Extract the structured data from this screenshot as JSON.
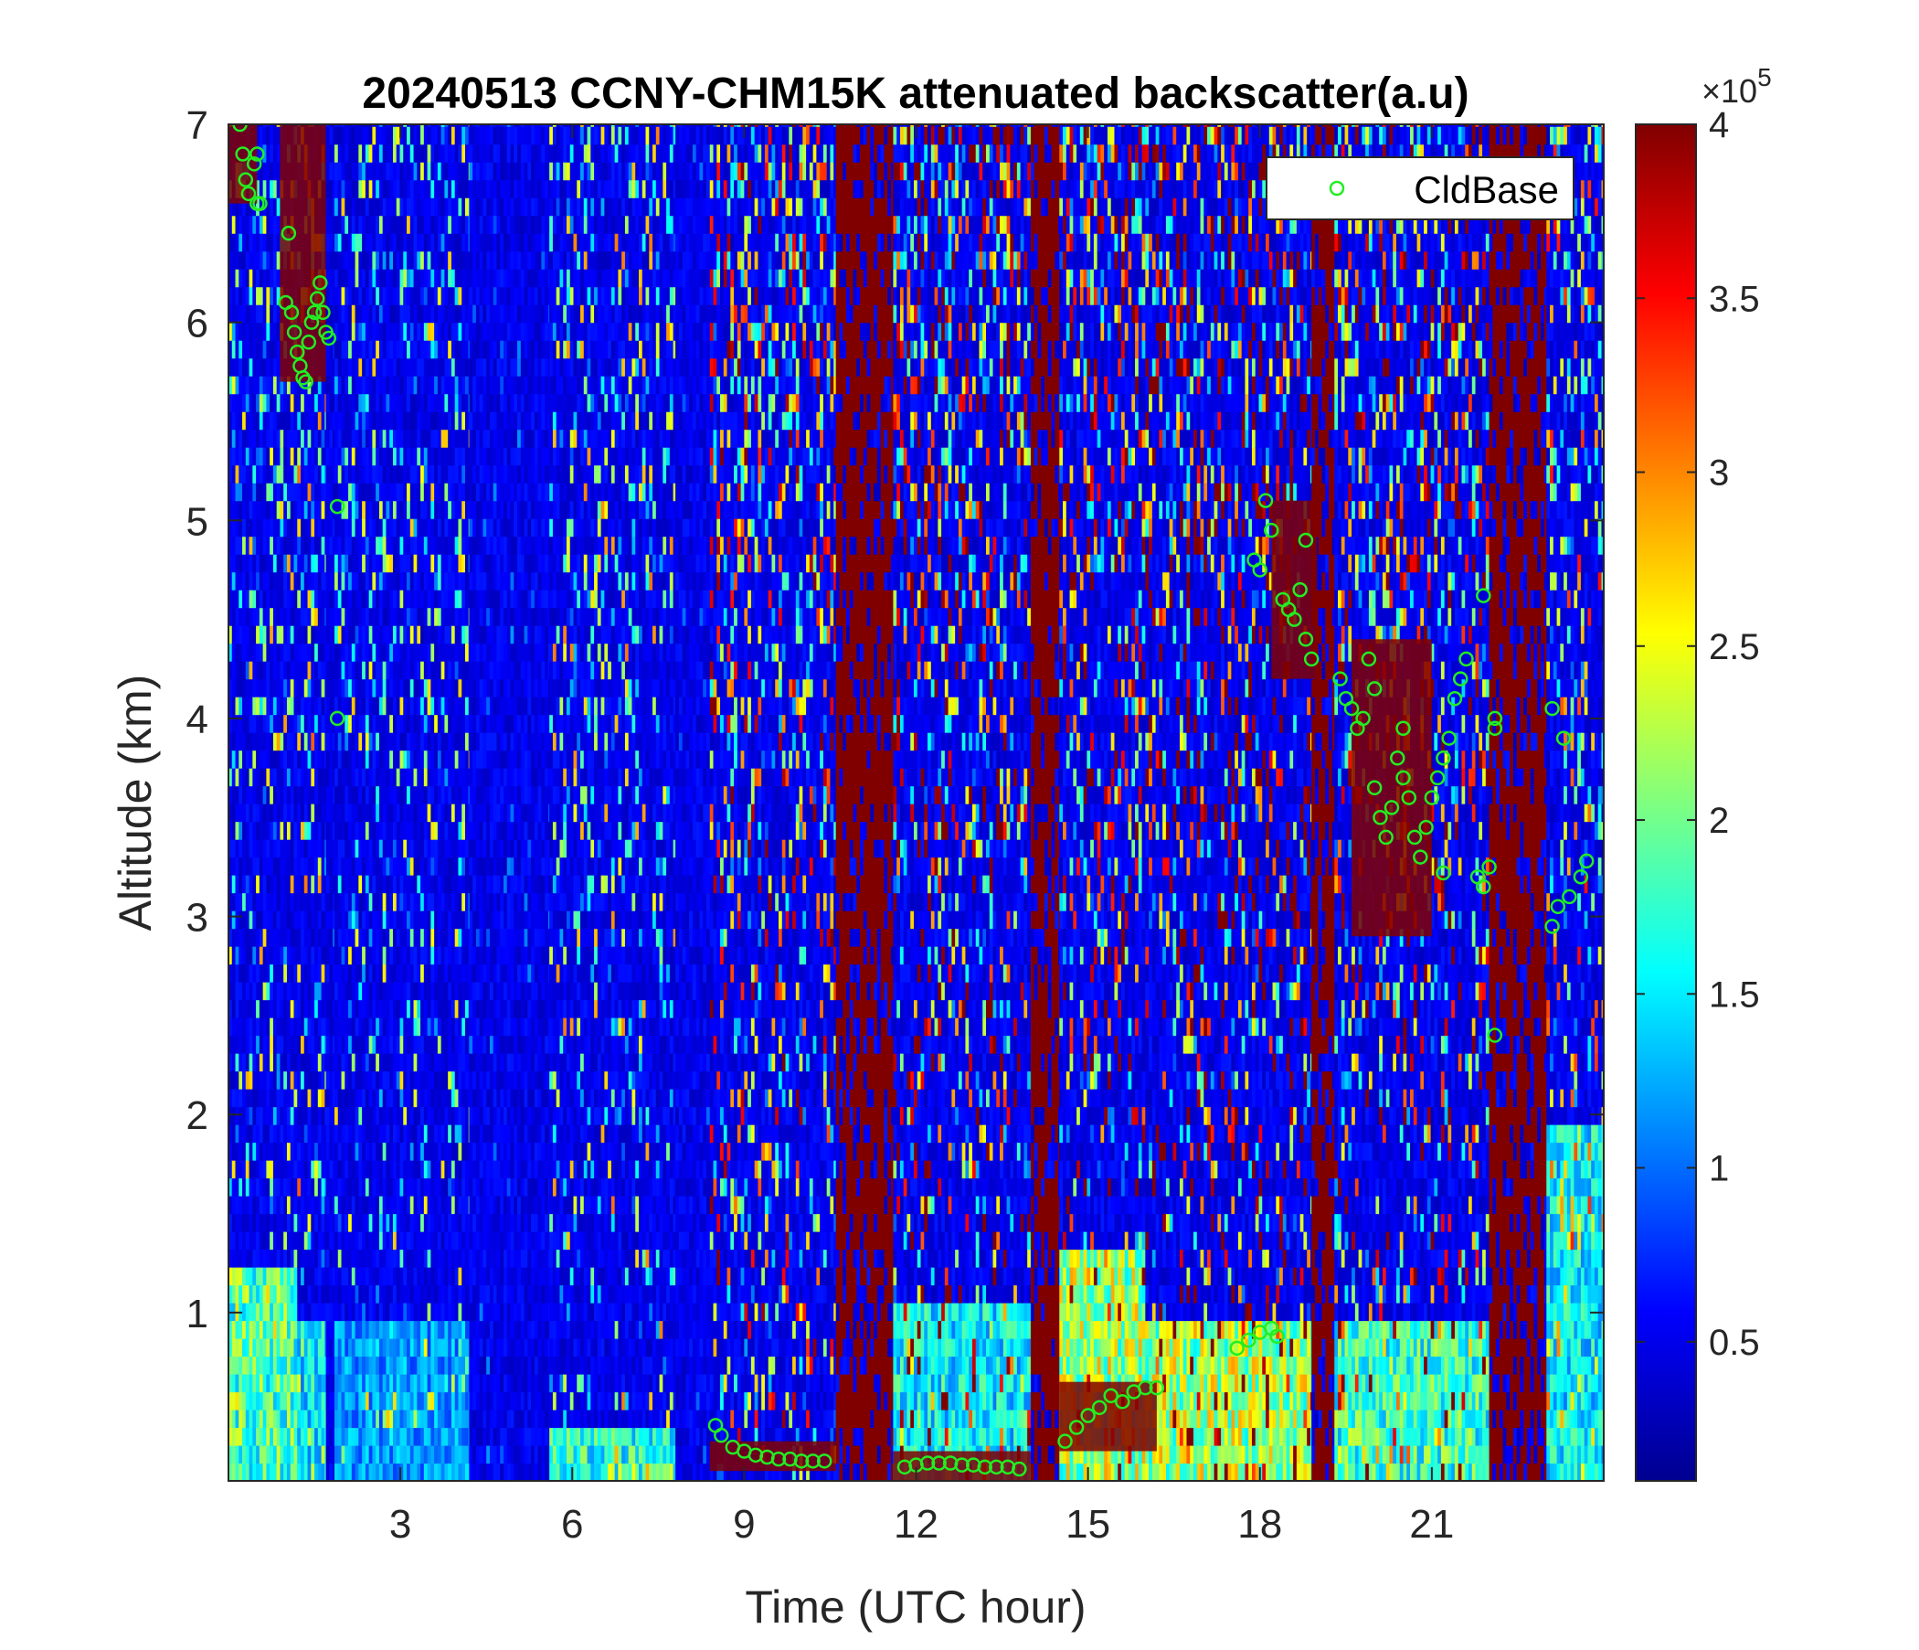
{
  "chart_data": {
    "type": "heatmap",
    "title": "20240513 CCNY-CHM15K attenuated backscatter(a.u)",
    "xlabel": "Time (UTC hour)",
    "ylabel": "Altitude (km)",
    "xlim": [
      0,
      24
    ],
    "ylim": [
      0.15,
      7
    ],
    "xticks": [
      3,
      6,
      9,
      12,
      15,
      18,
      21
    ],
    "xtick_labels": [
      "3",
      "6",
      "9",
      "12",
      "15",
      "18",
      "21"
    ],
    "yticks": [
      1,
      2,
      3,
      4,
      5,
      6,
      7
    ],
    "ytick_labels": [
      "1",
      "2",
      "3",
      "4",
      "5",
      "6",
      "7"
    ],
    "colorbar": {
      "colormap": "jet",
      "clim": [
        10000,
        400000
      ],
      "ticks": [
        0.5,
        1,
        1.5,
        2,
        2.5,
        3,
        3.5,
        4
      ],
      "tick_labels": [
        "0.5",
        "1",
        "1.5",
        "2",
        "2.5",
        "3",
        "3.5",
        "4"
      ],
      "exponent_base": "×10",
      "exponent_power": "5"
    },
    "legend": {
      "placement": "top-right",
      "entries": [
        {
          "label": "CldBase",
          "marker": "circle",
          "color": "#22ee22"
        }
      ]
    },
    "regimes": [
      {
        "t": [
          0.0,
          1.2
        ],
        "noise": 1.4,
        "pbl_top": 1.15,
        "pbl_level": 2.0
      },
      {
        "t": [
          1.2,
          1.7
        ],
        "noise": 1.6,
        "pbl_top": 0.9,
        "pbl_level": 1.6
      },
      {
        "t": [
          1.7,
          1.85
        ],
        "noise": 0.3,
        "pbl_top": 0.0,
        "pbl_level": 0.0
      },
      {
        "t": [
          1.85,
          4.2
        ],
        "noise": 1.3,
        "pbl_top": 0.9,
        "pbl_level": 1.2
      },
      {
        "t": [
          4.2,
          5.6
        ],
        "noise": 0.2,
        "pbl_top": 0.0,
        "pbl_level": 0.0
      },
      {
        "t": [
          5.6,
          7.8
        ],
        "noise": 1.5,
        "pbl_top": 0.4,
        "pbl_level": 1.8
      },
      {
        "t": [
          7.8,
          8.4
        ],
        "noise": 0.1,
        "pbl_top": 0.0,
        "pbl_level": 0.0
      },
      {
        "t": [
          8.4,
          10.6
        ],
        "noise": 2.2,
        "pbl_top": 0.3,
        "pbl_level": 0.3
      },
      {
        "t": [
          10.6,
          11.6
        ],
        "noise": 4.0,
        "pbl_top": 0.0,
        "pbl_level": 0.0
      },
      {
        "t": [
          11.6,
          14.0
        ],
        "noise": 2.6,
        "pbl_top": 1.0,
        "pbl_level": 1.6
      },
      {
        "t": [
          14.0,
          14.5
        ],
        "noise": 4.0,
        "pbl_top": 0.0,
        "pbl_level": 0.0
      },
      {
        "t": [
          14.5,
          16.0
        ],
        "noise": 2.4,
        "pbl_top": 1.3,
        "pbl_level": 2.4
      },
      {
        "t": [
          16.0,
          18.9
        ],
        "noise": 3.0,
        "pbl_top": 0.9,
        "pbl_level": 2.4
      },
      {
        "t": [
          18.9,
          19.3
        ],
        "noise": 4.0,
        "pbl_top": 0.0,
        "pbl_level": 0.0
      },
      {
        "t": [
          19.3,
          22.0
        ],
        "noise": 2.5,
        "pbl_top": 0.9,
        "pbl_level": 1.9
      },
      {
        "t": [
          22.0,
          23.0
        ],
        "noise": 4.0,
        "pbl_top": 0.0,
        "pbl_level": 0.0
      },
      {
        "t": [
          23.0,
          24.0
        ],
        "noise": 1.8,
        "pbl_top": 1.9,
        "pbl_level": 1.6
      }
    ],
    "cloud_layers": [
      {
        "t": [
          0.0,
          0.5
        ],
        "alt": [
          6.6,
          7.0
        ],
        "level": 4.0
      },
      {
        "t": [
          0.9,
          1.7
        ],
        "alt": [
          5.7,
          7.0
        ],
        "level": 4.0
      },
      {
        "t": [
          8.4,
          10.6
        ],
        "alt": [
          0.2,
          0.35
        ],
        "level": 4.0
      },
      {
        "t": [
          11.6,
          14.0
        ],
        "alt": [
          0.15,
          0.3
        ],
        "level": 4.0
      },
      {
        "t": [
          14.5,
          16.2
        ],
        "alt": [
          0.3,
          0.65
        ],
        "level": 4.0
      },
      {
        "t": [
          18.2,
          19.0
        ],
        "alt": [
          4.2,
          5.1
        ],
        "level": 4.0
      },
      {
        "t": [
          19.6,
          21.0
        ],
        "alt": [
          2.9,
          4.4
        ],
        "level": 4.0
      }
    ],
    "series": [
      {
        "name": "CldBase",
        "points": [
          [
            0.2,
            7.0
          ],
          [
            0.25,
            6.85
          ],
          [
            0.3,
            6.72
          ],
          [
            0.35,
            6.65
          ],
          [
            0.45,
            6.8
          ],
          [
            0.5,
            6.85
          ],
          [
            0.5,
            6.6
          ],
          [
            0.55,
            6.6
          ],
          [
            1.0,
            6.1
          ],
          [
            1.05,
            6.45
          ],
          [
            1.1,
            6.05
          ],
          [
            1.15,
            5.95
          ],
          [
            1.2,
            5.85
          ],
          [
            1.25,
            5.78
          ],
          [
            1.3,
            5.72
          ],
          [
            1.35,
            5.7
          ],
          [
            1.4,
            5.9
          ],
          [
            1.45,
            6.0
          ],
          [
            1.5,
            6.05
          ],
          [
            1.55,
            6.12
          ],
          [
            1.6,
            6.2
          ],
          [
            1.65,
            6.05
          ],
          [
            1.7,
            5.95
          ],
          [
            1.75,
            5.92
          ],
          [
            1.9,
            5.07
          ],
          [
            1.9,
            4.0
          ],
          [
            8.5,
            0.43
          ],
          [
            8.6,
            0.38
          ],
          [
            8.8,
            0.32
          ],
          [
            9.0,
            0.3
          ],
          [
            9.2,
            0.28
          ],
          [
            9.4,
            0.27
          ],
          [
            9.6,
            0.26
          ],
          [
            9.8,
            0.26
          ],
          [
            10.0,
            0.25
          ],
          [
            10.2,
            0.25
          ],
          [
            10.4,
            0.25
          ],
          [
            11.8,
            0.22
          ],
          [
            12.0,
            0.23
          ],
          [
            12.2,
            0.24
          ],
          [
            12.4,
            0.24
          ],
          [
            12.6,
            0.24
          ],
          [
            12.8,
            0.23
          ],
          [
            13.0,
            0.23
          ],
          [
            13.2,
            0.22
          ],
          [
            13.4,
            0.22
          ],
          [
            13.6,
            0.22
          ],
          [
            13.8,
            0.21
          ],
          [
            14.6,
            0.35
          ],
          [
            14.8,
            0.42
          ],
          [
            15.0,
            0.48
          ],
          [
            15.2,
            0.52
          ],
          [
            15.4,
            0.58
          ],
          [
            15.6,
            0.55
          ],
          [
            15.8,
            0.6
          ],
          [
            16.0,
            0.62
          ],
          [
            16.2,
            0.62
          ],
          [
            17.6,
            0.82
          ],
          [
            17.8,
            0.86
          ],
          [
            18.0,
            0.9
          ],
          [
            18.2,
            0.92
          ],
          [
            18.3,
            0.88
          ],
          [
            17.9,
            4.8
          ],
          [
            18.0,
            4.75
          ],
          [
            18.1,
            5.1
          ],
          [
            18.2,
            4.95
          ],
          [
            18.4,
            4.6
          ],
          [
            18.5,
            4.55
          ],
          [
            18.6,
            4.5
          ],
          [
            18.7,
            4.65
          ],
          [
            18.8,
            4.9
          ],
          [
            18.8,
            4.4
          ],
          [
            18.9,
            4.3
          ],
          [
            19.4,
            4.2
          ],
          [
            19.5,
            4.1
          ],
          [
            19.6,
            4.05
          ],
          [
            19.7,
            3.95
          ],
          [
            19.8,
            4.0
          ],
          [
            19.9,
            4.3
          ],
          [
            20.0,
            4.15
          ],
          [
            20.0,
            3.65
          ],
          [
            20.1,
            3.5
          ],
          [
            20.2,
            3.4
          ],
          [
            20.3,
            3.55
          ],
          [
            20.4,
            3.8
          ],
          [
            20.5,
            3.7
          ],
          [
            20.5,
            3.95
          ],
          [
            20.6,
            3.6
          ],
          [
            20.7,
            3.4
          ],
          [
            20.8,
            3.3
          ],
          [
            20.9,
            3.45
          ],
          [
            21.0,
            3.6
          ],
          [
            21.1,
            3.7
          ],
          [
            21.2,
            3.8
          ],
          [
            21.3,
            3.9
          ],
          [
            21.4,
            4.1
          ],
          [
            21.5,
            4.2
          ],
          [
            21.6,
            4.3
          ],
          [
            21.2,
            3.22
          ],
          [
            21.8,
            3.2
          ],
          [
            21.9,
            3.15
          ],
          [
            22.0,
            3.25
          ],
          [
            21.9,
            4.62
          ],
          [
            22.1,
            4.0
          ],
          [
            22.1,
            3.95
          ],
          [
            22.1,
            2.4
          ],
          [
            23.1,
            4.05
          ],
          [
            23.3,
            3.9
          ],
          [
            23.1,
            2.95
          ],
          [
            23.2,
            3.05
          ],
          [
            23.4,
            3.1
          ],
          [
            23.6,
            3.2
          ],
          [
            23.7,
            3.28
          ]
        ]
      }
    ]
  }
}
